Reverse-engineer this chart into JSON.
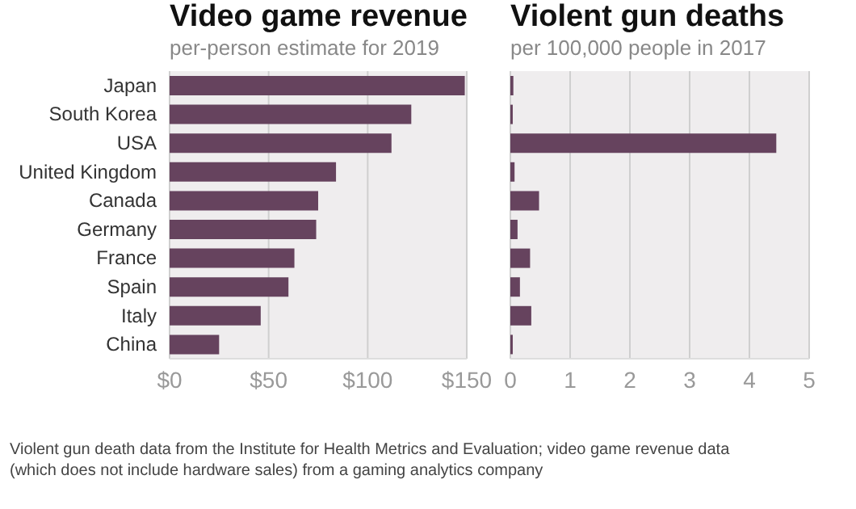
{
  "chart_data": [
    {
      "type": "bar",
      "orientation": "horizontal",
      "title": "Video game revenue",
      "subtitle": "per-person estimate for 2019",
      "categories": [
        "Japan",
        "South Korea",
        "USA",
        "United Kingdom",
        "Canada",
        "Germany",
        "France",
        "Spain",
        "Italy",
        "China"
      ],
      "values": [
        149,
        122,
        112,
        84,
        75,
        74,
        63,
        60,
        46,
        25
      ],
      "color": "#66435e",
      "xlim": [
        0,
        150
      ],
      "xticks": [
        {
          "value": 0,
          "label": "$0"
        },
        {
          "value": 50,
          "label": "$50"
        },
        {
          "value": 100,
          "label": "$100"
        },
        {
          "value": 150,
          "label": "$150"
        }
      ],
      "grid": "x",
      "annotations": [
        "Violent gun death data from the Institute for Health Metrics and Evaluation; video game revenue data (which does not include hardware sales) from a gaming analytics company"
      ]
    },
    {
      "type": "bar",
      "orientation": "horizontal",
      "title": "Violent gun deaths",
      "subtitle": "per 100,000 people in 2017",
      "categories": [
        null,
        null,
        null,
        null,
        null,
        null,
        null,
        null,
        null,
        null
      ],
      "values": [
        0.05,
        0.04,
        4.45,
        0.07,
        0.48,
        0.12,
        0.33,
        0.16,
        0.35,
        0.04
      ],
      "color": "#66435e",
      "xlim": [
        0,
        5
      ],
      "xticks": [
        0,
        1,
        2,
        3,
        4,
        5
      ],
      "grid": "x",
      "tick_labels": "x"
    }
  ]
}
